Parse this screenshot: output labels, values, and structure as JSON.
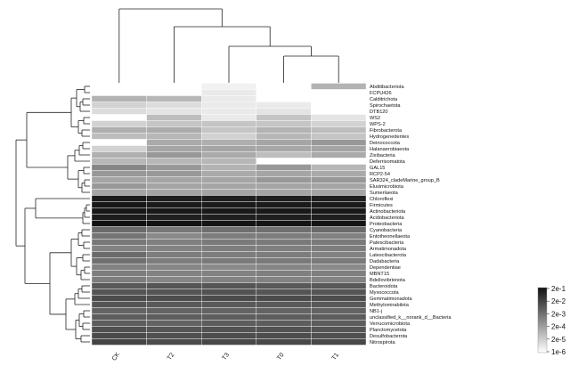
{
  "chart_data": {
    "type": "heatmap",
    "title": "",
    "xlabel": "",
    "ylabel": "",
    "color_scale": {
      "type": "log",
      "min": 1e-06,
      "max": 0.2,
      "low_color": "#ffffff",
      "high_color": "#111111",
      "tick_labels": [
        "2e-1",
        "2e-2",
        "2e-3",
        "2e-4",
        "2e-5",
        "1e-6"
      ],
      "tick_values": [
        0.2,
        0.02,
        0.002,
        0.0002,
        2e-05,
        1e-06
      ]
    },
    "columns": [
      "CK",
      "T2",
      "T3",
      "T0",
      "T1"
    ],
    "rows": [
      "Abditibacteriota",
      "FCPU426",
      "Calditrichota",
      "Spirochaetota",
      "DTB120",
      "WS2",
      "WPS-2",
      "Fibrobacterota",
      "Hydrogenedentes",
      "Deinococcota",
      "Halanaerobiaeota",
      "Zixibacteria",
      "Deferrisomatota",
      "GAL15",
      "RCP2-54",
      "SAR324_cladeMarine_group_B",
      "Elusimicrobiota",
      "Sumerlaeota",
      "Chloroflexi",
      "Firmicutes",
      "Actinobacteriota",
      "Acidobacteriota",
      "Proteobacteria",
      "Cyanobacteria",
      "Entotheonellaeota",
      "Patescibacteria",
      "Armatimonadota",
      "Latescibacterota",
      "Dadabacteria",
      "Dependentiae",
      "MBNT15",
      "Bdellovibrionota",
      "Bacteroidota",
      "Myxococcota",
      "Gemmatimonadota",
      "Methylomirabilota",
      "NB1-j",
      "unclassified_k__norank_d__Bacteria",
      "Verrucomicrobiota",
      "Planctomycetota",
      "Desulfobacterota",
      "Nitrospirota"
    ],
    "values": [
      [
        1e-06,
        1e-06,
        2e-06,
        1e-06,
        5e-05
      ],
      [
        1e-06,
        1e-06,
        3e-06,
        1e-06,
        1e-06
      ],
      [
        5e-05,
        4e-05,
        3e-06,
        1e-06,
        1e-06
      ],
      [
        1e-05,
        6e-06,
        3e-06,
        3e-06,
        1e-06
      ],
      [
        6e-06,
        4e-06,
        3e-06,
        4e-06,
        1e-06
      ],
      [
        1e-06,
        3e-05,
        3e-06,
        2e-05,
        4e-06
      ],
      [
        1e-05,
        2e-05,
        2e-05,
        2e-05,
        1e-05
      ],
      [
        6e-05,
        7e-05,
        2e-05,
        5e-05,
        3e-05
      ],
      [
        3e-05,
        4e-05,
        1e-05,
        4e-05,
        2e-05
      ],
      [
        1e-06,
        8e-05,
        6e-05,
        0.0001,
        0.0002
      ],
      [
        1e-05,
        0.0001,
        0.0001,
        9e-05,
        0.0001
      ],
      [
        6e-05,
        0.0002,
        8e-05,
        3e-05,
        8e-05
      ],
      [
        4e-05,
        4e-05,
        4e-05,
        1e-06,
        1e-06
      ],
      [
        0.0005,
        0.0002,
        5e-05,
        0.0002,
        4e-05
      ],
      [
        0.0002,
        0.0002,
        8e-05,
        0.0001,
        8e-05
      ],
      [
        0.0001,
        0.0001,
        0.0001,
        0.0002,
        0.0002
      ],
      [
        0.0002,
        0.0001,
        0.0001,
        0.0001,
        0.0001
      ],
      [
        0.0001,
        0.0001,
        0.0001,
        0.0001,
        0.0001
      ],
      [
        0.12,
        0.1,
        0.1,
        0.1,
        0.1
      ],
      [
        0.15,
        0.12,
        0.12,
        0.12,
        0.12
      ],
      [
        0.15,
        0.13,
        0.13,
        0.13,
        0.13
      ],
      [
        0.12,
        0.1,
        0.1,
        0.1,
        0.1
      ],
      [
        0.2,
        0.18,
        0.17,
        0.17,
        0.17
      ],
      [
        0.002,
        0.001,
        0.0015,
        0.0015,
        0.002
      ],
      [
        0.0012,
        0.0004,
        0.0008,
        0.0008,
        0.0006
      ],
      [
        0.001,
        0.0007,
        0.0009,
        0.0009,
        0.0009
      ],
      [
        0.0006,
        0.0006,
        0.0008,
        0.0007,
        0.0008
      ],
      [
        0.002,
        0.0008,
        0.0008,
        0.0008,
        0.0006
      ],
      [
        0.0015,
        0.0008,
        0.0009,
        0.0009,
        0.0009
      ],
      [
        0.0006,
        0.0005,
        0.0004,
        0.0005,
        0.0004
      ],
      [
        0.0008,
        0.0006,
        0.0006,
        0.0007,
        0.0007
      ],
      [
        0.0008,
        0.0005,
        0.0006,
        0.0006,
        0.0006
      ],
      [
        0.005,
        0.006,
        0.006,
        0.005,
        0.005
      ],
      [
        0.006,
        0.006,
        0.007,
        0.006,
        0.006
      ],
      [
        0.01,
        0.009,
        0.01,
        0.01,
        0.009
      ],
      [
        0.006,
        0.005,
        0.005,
        0.005,
        0.005
      ],
      [
        0.003,
        0.003,
        0.003,
        0.003,
        0.003
      ],
      [
        0.004,
        0.004,
        0.004,
        0.004,
        0.004
      ],
      [
        0.004,
        0.003,
        0.004,
        0.004,
        0.004
      ],
      [
        0.008,
        0.006,
        0.007,
        0.007,
        0.006
      ],
      [
        0.01,
        0.008,
        0.009,
        0.009,
        0.008
      ],
      [
        0.015,
        0.01,
        0.012,
        0.012,
        0.012
      ]
    ],
    "row_dendrogram": true,
    "column_dendrogram": true,
    "legend_placement": "bottom-right"
  }
}
